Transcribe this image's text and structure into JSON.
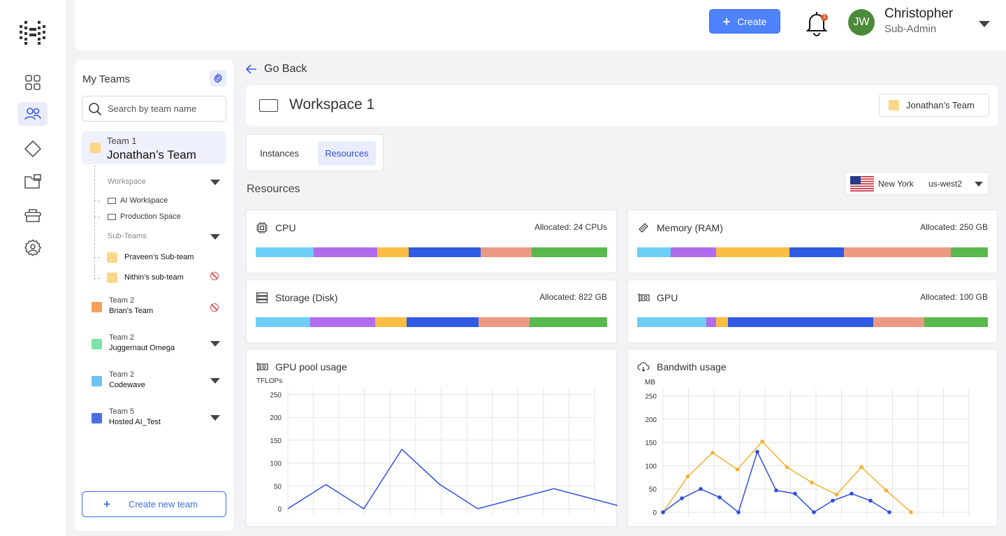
{
  "topbar": {
    "create_label": "Create",
    "notification_count": "1",
    "avatar_initials": "JW",
    "user_name": "Christopher",
    "user_role": "Sub-Admin"
  },
  "teams_panel": {
    "title": "My Teams",
    "search_placeholder": "Search by team name",
    "active_team": {
      "kicker": "Team 1",
      "name": "Jonathan’s Team",
      "color": "#fbd78a"
    },
    "workspace_label": "Workspace",
    "workspaces": [
      "AI Workspace",
      "Production Space"
    ],
    "subteams_label": "Sub-Teams",
    "subteams": [
      {
        "name": "Praveen’s Sub-team",
        "color": "#fbd78a",
        "blocked": false
      },
      {
        "name": "Nithin’s sub-team",
        "color": "#fbd78a",
        "blocked": true
      }
    ],
    "teams": [
      {
        "kicker": "Team 2",
        "name": "Brian’s Team",
        "color": "#f5a05c",
        "action": "blocked"
      },
      {
        "kicker": "Team 2",
        "name": "Juggernaut Omega",
        "color": "#7ee3a8",
        "action": "expand"
      },
      {
        "kicker": "Team 2",
        "name": "Codewave",
        "color": "#6cc3f4",
        "action": "expand"
      },
      {
        "kicker": "Team 5",
        "name": "Hosted AI_Test",
        "color": "#4a6fe0",
        "action": "expand"
      }
    ],
    "create_label": "Create new team"
  },
  "main": {
    "go_back": "Go Back",
    "workspace_title": "Workspace 1",
    "team_chip": "Jonathan’s Team",
    "tabs": [
      {
        "label": "Instances",
        "active": false
      },
      {
        "label": "Resources",
        "active": true
      }
    ],
    "section_title": "Resources",
    "region": {
      "city": "New York",
      "zone": "us-west2"
    }
  },
  "segment_colors": [
    "#6dcff6",
    "#b06ced",
    "#fbbd45",
    "#2f5be5",
    "#ec9a84",
    "#59b94e"
  ],
  "resources": [
    {
      "title": "CPU",
      "icon": "cpu-icon",
      "allocated": "Allocated: 24 CPUs",
      "segments": [
        16.5,
        18,
        9,
        20.5,
        14.5,
        21.5
      ]
    },
    {
      "title": "Memory (RAM)",
      "icon": "memory-icon",
      "allocated": "Allocated: 250 GB",
      "segments": [
        9.5,
        13,
        21,
        15.5,
        30.5,
        10.5
      ]
    },
    {
      "title": "Storage (Disk)",
      "icon": "storage-icon",
      "allocated": "Allocated: 822 GB",
      "segments": [
        15.5,
        18.5,
        9,
        20.5,
        14.5,
        22
      ]
    },
    {
      "title": "GPU",
      "icon": "gpu-icon",
      "allocated": "Allocated: 100 GB",
      "segments": [
        19.8,
        2.8,
        3.3,
        41.5,
        14.5,
        18.1
      ]
    }
  ],
  "chart_data": [
    {
      "type": "line",
      "title": "GPU pool usage",
      "ylabel": "TFLOPs",
      "yticks": [
        0,
        50,
        100,
        150,
        200,
        250
      ],
      "ylim": [
        0,
        260
      ],
      "grid": true,
      "series": [
        {
          "color": "#2f4fe0",
          "marker": false,
          "values": [
            0,
            53,
            0,
            130,
            53,
            0,
            22,
            44,
            22,
            0
          ]
        }
      ]
    },
    {
      "type": "line",
      "title": "Bandwith usage",
      "ylabel": "MB",
      "yticks": [
        0,
        50,
        100,
        150,
        200,
        250
      ],
      "ylim": [
        0,
        260
      ],
      "grid": true,
      "series": [
        {
          "color": "#f4b12d",
          "marker": true,
          "values": [
            0,
            77,
            128,
            92,
            152,
            97,
            64,
            38,
            97,
            47,
            0
          ]
        },
        {
          "color": "#2f4fe0",
          "marker": true,
          "values": [
            0,
            30,
            50,
            32,
            0,
            130,
            47,
            40,
            0,
            25,
            40,
            25,
            0
          ]
        }
      ]
    }
  ]
}
